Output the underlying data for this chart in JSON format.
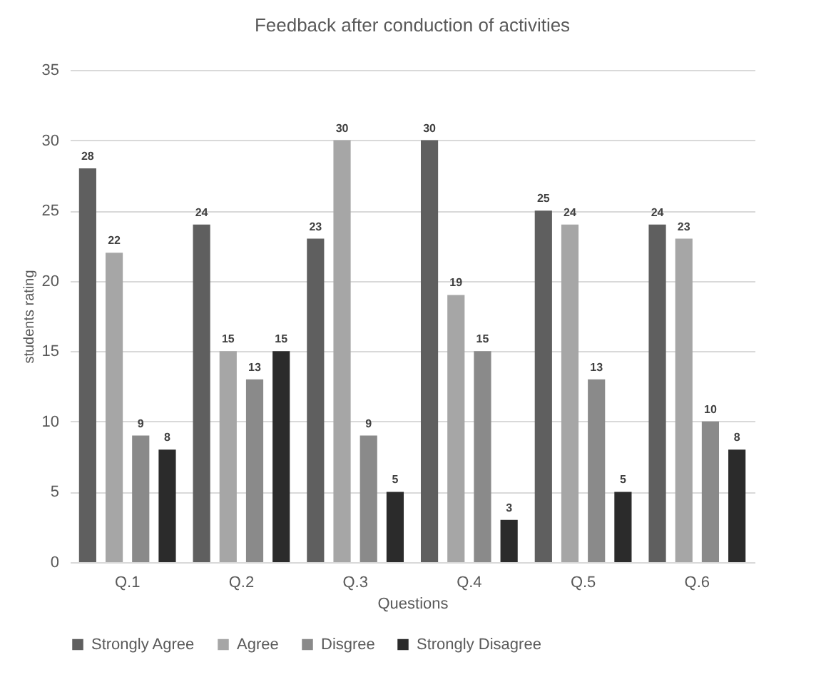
{
  "chart_data": {
    "type": "bar",
    "title": "Feedback after conduction of activities",
    "xlabel": "Questions",
    "ylabel": "students rating",
    "categories": [
      "Q.1",
      "Q.2",
      "Q.3",
      "Q.4",
      "Q.5",
      "Q.6"
    ],
    "series": [
      {
        "name": "Strongly Agree",
        "color": "#5f5f5f",
        "values": [
          28,
          24,
          23,
          30,
          25,
          24
        ]
      },
      {
        "name": "Agree",
        "color": "#a6a6a6",
        "values": [
          22,
          15,
          30,
          19,
          24,
          23
        ]
      },
      {
        "name": "Disgree",
        "color": "#8a8a8a",
        "values": [
          9,
          13,
          9,
          15,
          13,
          10
        ]
      },
      {
        "name": "Strongly Disagree",
        "color": "#2b2b2b",
        "values": [
          8,
          15,
          5,
          3,
          5,
          8
        ]
      }
    ],
    "ylim": [
      0,
      35
    ],
    "yticks": [
      0,
      5,
      10,
      15,
      20,
      25,
      30,
      35
    ],
    "grid": "y",
    "legend": "bottom",
    "data_labels": true
  }
}
